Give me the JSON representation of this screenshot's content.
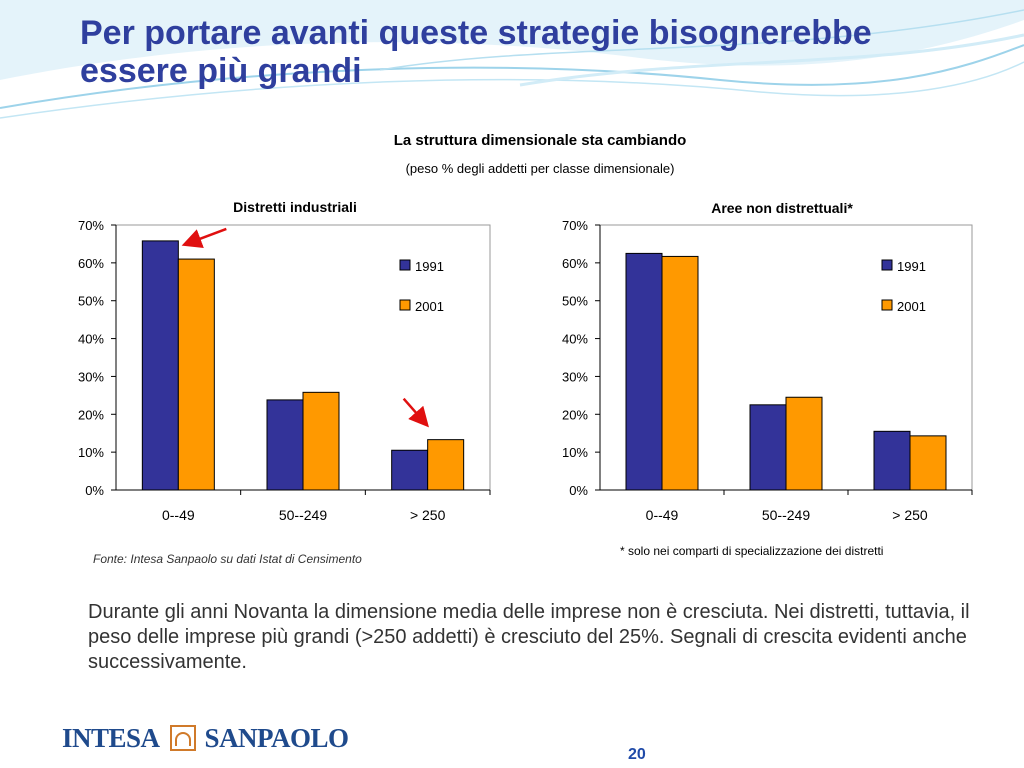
{
  "slide": {
    "title_line1": "Per portare avanti queste strategie bisognerebbe",
    "title_line2": "essere più grandi",
    "main_chart_title": "La struttura dimensionale sta cambiando",
    "main_chart_subtitle": "(peso % degli addetti per classe dimensionale)",
    "source": "Fonte: Intesa Sanpaolo su dati Istat di Censimento",
    "footnote": "* solo nei comparti di specializzazione dei distretti",
    "body_text": "Durante gli anni Novanta la dimensione media delle imprese non è cresciuta. Nei distretti, tuttavia, il peso delle imprese più grandi (>250 addetti) è cresciuto del 25%. Segnali di crescita evidenti anche successivamente.",
    "logo": {
      "left": "INTESA",
      "right": "SANPAOLO"
    },
    "page_number": "20"
  },
  "colors": {
    "title": "#2f3f9e",
    "series_1991": "#333399",
    "series_2001": "#ff9900",
    "arrow": "#e01010"
  },
  "chart_data": [
    {
      "type": "bar",
      "title": "Distretti industriali",
      "categories": [
        "0--49",
        "50--249",
        "> 250"
      ],
      "series": [
        {
          "name": "1991",
          "values": [
            65.8,
            23.8,
            10.5
          ]
        },
        {
          "name": "2001",
          "values": [
            61.0,
            25.8,
            13.3
          ]
        }
      ],
      "ylim": [
        0,
        70
      ],
      "yticks": [
        "0%",
        "10%",
        "20%",
        "30%",
        "40%",
        "50%",
        "60%",
        "70%"
      ],
      "legend": "right",
      "grid": false,
      "annotations": [
        "red arrow pointing down-left to 0--49 1991 bar",
        "red arrow pointing down-right to > 250 2001 bar"
      ]
    },
    {
      "type": "bar",
      "title": "Aree non distrettuali*",
      "categories": [
        "0--49",
        "50--249",
        "> 250"
      ],
      "series": [
        {
          "name": "1991",
          "values": [
            62.5,
            22.5,
            15.5
          ]
        },
        {
          "name": "2001",
          "values": [
            61.7,
            24.5,
            14.3
          ]
        }
      ],
      "ylim": [
        0,
        70
      ],
      "yticks": [
        "0%",
        "10%",
        "20%",
        "30%",
        "40%",
        "50%",
        "60%",
        "70%"
      ],
      "legend": "right",
      "grid": false
    }
  ]
}
